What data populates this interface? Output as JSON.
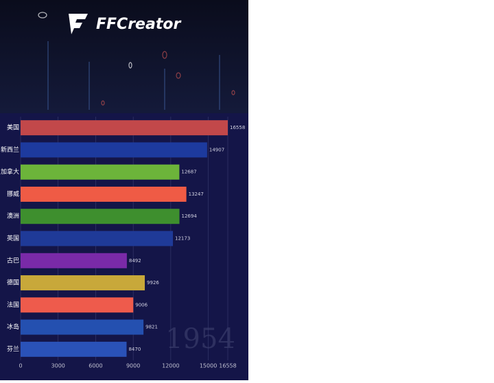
{
  "brand": "FFCreator",
  "chart_data": {
    "type": "bar",
    "orientation": "horizontal",
    "annotation": "1954",
    "categories": [
      "美国",
      "新西兰",
      "加拿大",
      "挪威",
      "澳洲",
      "英国",
      "古巴",
      "德国",
      "法国",
      "冰岛",
      "芬兰"
    ],
    "values": [
      16558,
      14907,
      12687,
      13247,
      12694,
      12173,
      8492,
      9926,
      9006,
      9821,
      8470
    ],
    "colors": [
      "#c2484a",
      "#1d3a9e",
      "#6cb43a",
      "#ef5b45",
      "#3e8f2e",
      "#1f3a98",
      "#7a2aa8",
      "#c8a83a",
      "#ee5b4c",
      "#2450b0",
      "#2a52b8"
    ],
    "xlim": [
      0,
      16558
    ],
    "xticks": [
      0,
      3000,
      6000,
      9000,
      12000,
      15000,
      16558
    ],
    "grid": true
  }
}
